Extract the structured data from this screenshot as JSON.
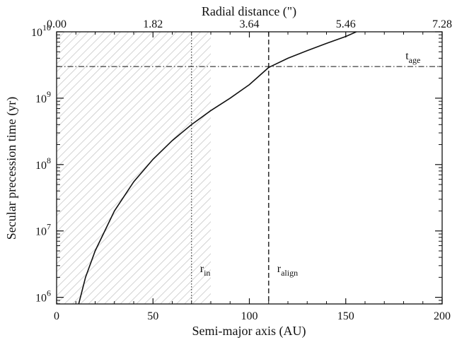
{
  "chart_data": {
    "type": "line",
    "xlabel": "Semi-major axis (AU)",
    "ylabel": "Secular precession time (yr)",
    "x2label": "Radial distance (\")",
    "xlim": [
      0,
      200
    ],
    "ylim_log10": [
      5.9,
      10
    ],
    "y_scale": "log",
    "x_ticks": [
      "0",
      "50",
      "100",
      "150",
      "200"
    ],
    "x2_ticks": [
      "0.00",
      "1.82",
      "3.64",
      "5.46",
      "7.28"
    ],
    "y_ticks": [
      {
        "base": "10",
        "exp": "6"
      },
      {
        "base": "10",
        "exp": "7"
      },
      {
        "base": "10",
        "exp": "8"
      },
      {
        "base": "10",
        "exp": "9"
      },
      {
        "base": "10",
        "exp": "10"
      }
    ],
    "curve": {
      "x": [
        11.5,
        15,
        20,
        30,
        40,
        50,
        60,
        70,
        80,
        90,
        100,
        110,
        120,
        130,
        140,
        150,
        155.5
      ],
      "y": [
        800000.0,
        2000000.0,
        5000000.0,
        20000000.0,
        55000000.0,
        120000000.0,
        230000000.0,
        400000000.0,
        650000000.0,
        1000000000.0,
        1600000000.0,
        2900000000.0,
        4000000000.0,
        5200000000.0,
        6700000000.0,
        8500000000.0,
        10000000000.0
      ]
    },
    "t_age": {
      "value": 3000000000.0,
      "base": "t",
      "sub": "age"
    },
    "r_in": {
      "value": 70,
      "base": "r",
      "sub": "in"
    },
    "r_align": {
      "value": 110,
      "base": "r",
      "sub": "align"
    },
    "excluded_region": {
      "x_from": 0,
      "x_to": 80
    },
    "grid": false,
    "colors": {
      "curve": "#111111",
      "hatch": "#c8c8c8",
      "axes": "#111111"
    }
  }
}
